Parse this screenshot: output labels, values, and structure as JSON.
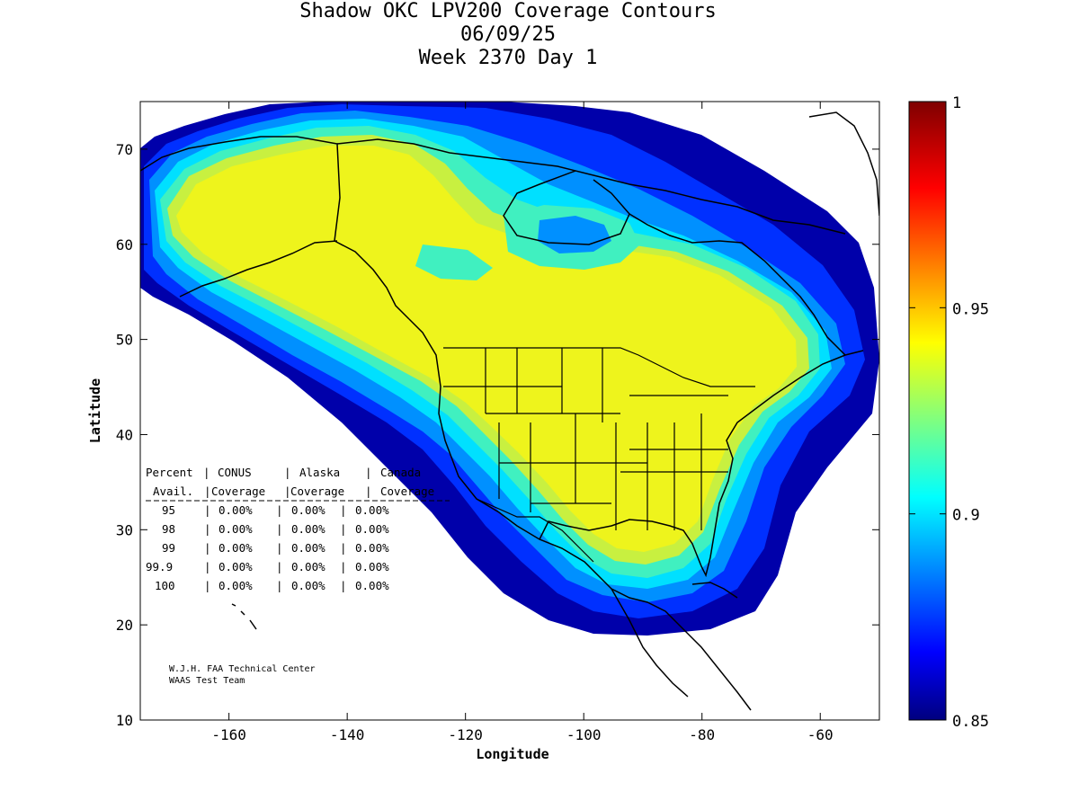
{
  "title": {
    "line1": "Shadow OKC LPV200 Coverage Contours",
    "line2": "06/09/25",
    "line3": "Week 2370 Day 1"
  },
  "axes": {
    "xlabel": "Longitude",
    "ylabel": "Latitude",
    "xlim": [
      -175,
      -50
    ],
    "ylim": [
      10,
      75
    ],
    "xticks": [
      "-160",
      "-140",
      "-120",
      "-100",
      "-80",
      "-60"
    ],
    "xtick_values": [
      -160,
      -140,
      -120,
      -100,
      -80,
      -60
    ],
    "yticks": [
      "10",
      "20",
      "30",
      "40",
      "50",
      "60",
      "70"
    ],
    "ytick_values": [
      10,
      20,
      30,
      40,
      50,
      60,
      70
    ]
  },
  "colorbar": {
    "min": 0.85,
    "max": 1,
    "labels": [
      "1",
      "0.95",
      "0.9",
      "0.85"
    ],
    "label_values": [
      1,
      0.95,
      0.9,
      0.85
    ],
    "colormap": "jet"
  },
  "coverage_table": {
    "header1": [
      "Percent",
      "CONUS",
      "Alaska",
      "Canada"
    ],
    "header2": [
      "Avail.",
      "Coverage",
      "Coverage",
      "Coverage"
    ],
    "rows": [
      [
        "95",
        "0.00%",
        "0.00%",
        "0.00%"
      ],
      [
        "98",
        "0.00%",
        "0.00%",
        "0.00%"
      ],
      [
        "99",
        "0.00%",
        "0.00%",
        "0.00%"
      ],
      [
        "99.9",
        "0.00%",
        "0.00%",
        "0.00%"
      ],
      [
        "100",
        "0.00%",
        "0.00%",
        "0.00%"
      ]
    ]
  },
  "credits": {
    "line1": "W.J.H. FAA Technical Center",
    "line2": "WAAS Test Team"
  },
  "colors": {
    "dark_blue": "#0000aa",
    "blue": "#0030ff",
    "light_blue": "#0090ff",
    "cyan": "#00e0ff",
    "aqua_green": "#40f0c0",
    "yellow_green": "#c8f040",
    "yellow": "#eef41c"
  }
}
